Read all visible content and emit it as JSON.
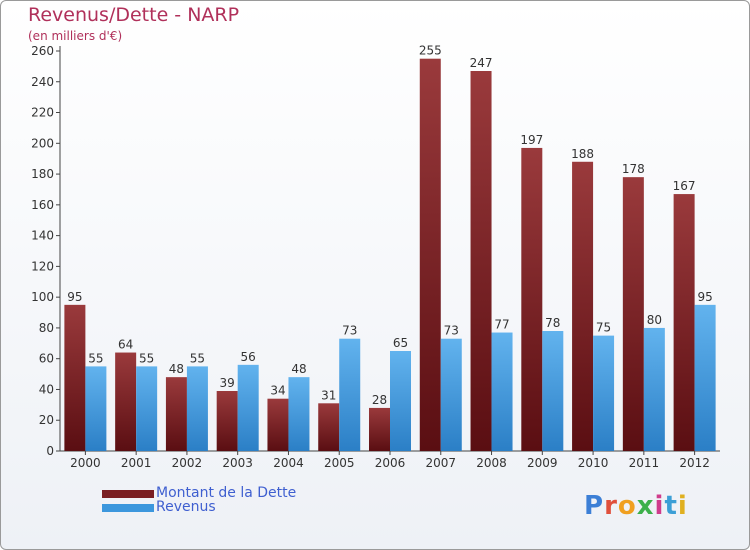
{
  "chart_data": {
    "type": "bar",
    "title": "Revenus/Dette - NARP",
    "subtitle": "(en milliers d'€)",
    "categories": [
      "2000",
      "2001",
      "2002",
      "2003",
      "2004",
      "2005",
      "2006",
      "2007",
      "2008",
      "2009",
      "2010",
      "2011",
      "2012"
    ],
    "series": [
      {
        "name": "Montant de la Dette",
        "color": "#7a1e22",
        "values": [
          95,
          64,
          48,
          39,
          34,
          31,
          28,
          255,
          247,
          197,
          188,
          178,
          167
        ]
      },
      {
        "name": "Revenus",
        "color": "#3c97dd",
        "values": [
          55,
          55,
          55,
          56,
          48,
          73,
          65,
          73,
          77,
          78,
          75,
          80,
          95
        ]
      }
    ],
    "ylim": [
      0,
      260
    ],
    "yticks": [
      0,
      20,
      40,
      60,
      80,
      100,
      120,
      140,
      160,
      180,
      200,
      220,
      240,
      260
    ],
    "grid": false,
    "legend_position": "bottom-left"
  },
  "logo": {
    "text": "Proxiti",
    "colors": [
      "#3c7fd6",
      "#e0503c",
      "#f0a020",
      "#3cb04a",
      "#d03c8c",
      "#3c9fd6",
      "#e0b020"
    ]
  }
}
